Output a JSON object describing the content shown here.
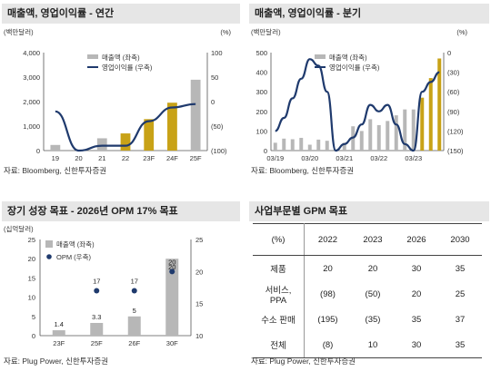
{
  "panels": {
    "p1": {
      "title": "매출액, 영업이익률 - 연간",
      "unit_left": "(백만달러)",
      "unit_right": "(%)",
      "source": "자료: Bloomberg, 신한투자증권"
    },
    "p2": {
      "title": "매출액, 영업이익률 - 분기",
      "unit_left": "(백만달러)",
      "unit_right": "(%)",
      "source": "자료: Bloomberg, 신한투자증권"
    },
    "p3": {
      "title": "장기 성장 목표 - 2026년 OPM 17% 목표",
      "unit_left": "(십억달러)",
      "source": "자료: Plug Power, 신한투자증권"
    },
    "p4": {
      "title": "사업부문별 GPM 목표",
      "source": "자료: Plug Power, 신한투자증권"
    }
  },
  "colors": {
    "gray": "#b7b7b7",
    "gold": "#c8a217",
    "navy": "#1f3a6d"
  },
  "chart_data": [
    {
      "type": "bar",
      "categories": [
        "19",
        "20",
        "21",
        "22",
        "23F",
        "24F",
        "25F"
      ],
      "series": [
        {
          "name": "매출액 (좌축)",
          "axis": "left",
          "values": [
            230,
            -95,
            502,
            701,
            1284,
            1955,
            2893
          ],
          "colors": [
            "gray",
            "gray",
            "gray",
            "gold",
            "gold",
            "gold",
            "gray"
          ]
        },
        {
          "name": "영업이익률 (우축)",
          "axis": "right",
          "type": "line",
          "values": [
            -20,
            -100,
            -90,
            -90,
            -40,
            -12,
            -5
          ]
        }
      ],
      "ylim_left": [
        0,
        4000
      ],
      "yticks_left": [
        "0",
        "1,000",
        "2,000",
        "3,000",
        "4,000"
      ],
      "ylim_right": [
        -100,
        100
      ],
      "yticks_right": [
        "(100)",
        "(50)",
        "0",
        "50",
        "100"
      ],
      "legend": "top"
    },
    {
      "type": "bar",
      "categories": [
        "03/19",
        "",
        "",
        "",
        "03/20",
        "",
        "",
        "",
        "03/21",
        "",
        "",
        "",
        "03/22",
        "",
        "",
        "",
        "03/23",
        "",
        "",
        ""
      ],
      "xtick_labels": [
        "03/19",
        "03/20",
        "03/21",
        "03/22",
        "03/23"
      ],
      "series": [
        {
          "name": "매출액 (좌축)",
          "axis": "left",
          "values": [
            40,
            61,
            58,
            65,
            30,
            56,
            50,
            -30,
            40,
            124,
            100,
            160,
            130,
            151,
            180,
            210,
            210,
            270,
            370,
            470
          ],
          "colors": [
            "gray",
            "gray",
            "gray",
            "gray",
            "gray",
            "gray",
            "gray",
            "gray",
            "gray",
            "gray",
            "gray",
            "gray",
            "gray",
            "gray",
            "gray",
            "gray",
            "gray",
            "gold",
            "gold",
            "gold"
          ]
        },
        {
          "name": "영업이익률 (우축)",
          "axis": "right",
          "type": "line",
          "values": [
            -120,
            -100,
            -70,
            -40,
            -10,
            -20,
            -60,
            -150,
            -140,
            -130,
            -110,
            -80,
            -90,
            -80,
            -110,
            -140,
            -150,
            -60,
            -45,
            -30
          ]
        }
      ],
      "ylim_left": [
        0,
        500
      ],
      "yticks_left": [
        "0",
        "100",
        "200",
        "300",
        "400",
        "500"
      ],
      "ylim_right": [
        -150,
        0
      ],
      "yticks_right": [
        "(150)",
        "(120)",
        "(90)",
        "(60)",
        "(30)",
        "0"
      ],
      "legend": "top"
    },
    {
      "type": "bar",
      "categories": [
        "23F",
        "25F",
        "26F",
        "30F"
      ],
      "series": [
        {
          "name": "매출액 (좌축)",
          "axis": "left",
          "values": [
            1.4,
            3.3,
            5,
            20
          ],
          "labels": [
            "1.4",
            "3.3",
            "5",
            "20"
          ]
        },
        {
          "name": "OPM (우축)",
          "axis": "right",
          "type": "scatter",
          "values": [
            null,
            17,
            17,
            20
          ],
          "labels": [
            "",
            "17",
            "17",
            "20"
          ]
        }
      ],
      "ylim_left": [
        0,
        25
      ],
      "yticks_left": [
        "0",
        "5",
        "10",
        "15",
        "20",
        "25"
      ],
      "ylim_right": [
        10,
        25
      ],
      "yticks_right": [
        "10",
        "15",
        "20",
        "25"
      ],
      "legend": "top-left"
    },
    {
      "type": "table",
      "header": [
        "(%)",
        "2022",
        "2023",
        "2026",
        "2030"
      ],
      "rows": [
        [
          "제품",
          "20",
          "20",
          "30",
          "35"
        ],
        [
          "서비스,\nPPA",
          "(98)",
          "(50)",
          "20",
          "25"
        ],
        [
          "수소 판매",
          "(195)",
          "(35)",
          "35",
          "37"
        ],
        [
          "전체",
          "(8)",
          "10",
          "30",
          "35"
        ]
      ]
    }
  ]
}
